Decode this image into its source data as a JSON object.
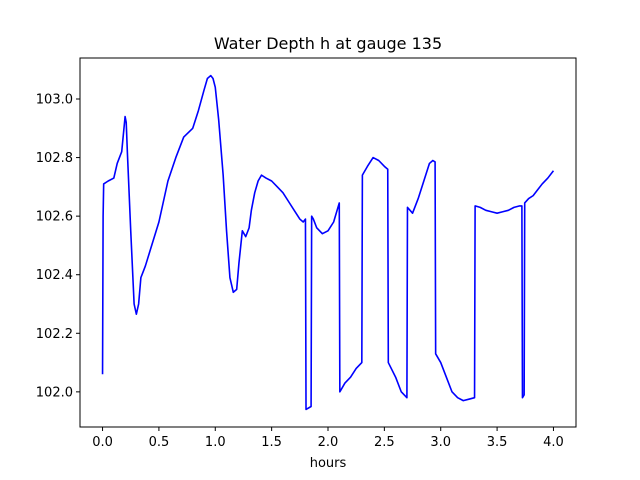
{
  "chart_data": {
    "type": "line",
    "title": "Water Depth h at gauge 135",
    "xlabel": "hours",
    "ylabel": "",
    "xlim": [
      -0.2,
      4.2
    ],
    "ylim": [
      101.88,
      103.14
    ],
    "xticks": [
      0.0,
      0.5,
      1.0,
      1.5,
      2.0,
      2.5,
      3.0,
      3.5,
      4.0
    ],
    "xtick_labels": [
      "0.0",
      "0.5",
      "1.0",
      "1.5",
      "2.0",
      "2.5",
      "3.0",
      "3.5",
      "4.0"
    ],
    "yticks": [
      102.0,
      102.2,
      102.4,
      102.6,
      102.8,
      103.0
    ],
    "ytick_labels": [
      "102.0",
      "102.2",
      "102.4",
      "102.6",
      "102.8",
      "103.0"
    ],
    "grid": false,
    "series": [
      {
        "color": "#0000ff",
        "x": [
          0.0,
          0.005,
          0.01,
          0.05,
          0.1,
          0.13,
          0.17,
          0.2,
          0.21,
          0.22,
          0.25,
          0.28,
          0.3,
          0.32,
          0.34,
          0.36,
          0.38,
          0.42,
          0.5,
          0.58,
          0.65,
          0.72,
          0.8,
          0.85,
          0.9,
          0.93,
          0.96,
          0.98,
          1.0,
          1.03,
          1.07,
          1.1,
          1.13,
          1.16,
          1.19,
          1.21,
          1.24,
          1.27,
          1.3,
          1.32,
          1.35,
          1.38,
          1.41,
          1.45,
          1.5,
          1.55,
          1.6,
          1.65,
          1.7,
          1.75,
          1.78,
          1.8,
          1.805,
          1.85,
          1.855,
          1.87,
          1.9,
          1.95,
          2.0,
          2.05,
          2.1,
          2.105,
          2.15,
          2.2,
          2.25,
          2.3,
          2.305,
          2.35,
          2.4,
          2.45,
          2.5,
          2.53,
          2.535,
          2.6,
          2.65,
          2.7,
          2.705,
          2.75,
          2.8,
          2.85,
          2.9,
          2.93,
          2.95,
          2.955,
          3.0,
          3.05,
          3.1,
          3.15,
          3.2,
          3.25,
          3.3,
          3.305,
          3.35,
          3.4,
          3.45,
          3.5,
          3.55,
          3.6,
          3.65,
          3.7,
          3.72,
          3.725,
          3.74,
          3.745,
          3.78,
          3.82,
          3.86,
          3.9,
          3.95,
          4.0
        ],
        "y": [
          102.06,
          102.6,
          102.71,
          102.72,
          102.73,
          102.78,
          102.82,
          102.94,
          102.92,
          102.82,
          102.55,
          102.3,
          102.265,
          102.3,
          102.39,
          102.41,
          102.43,
          102.48,
          102.58,
          102.72,
          102.8,
          102.87,
          102.9,
          102.96,
          103.03,
          103.07,
          103.08,
          103.07,
          103.04,
          102.93,
          102.74,
          102.55,
          102.39,
          102.34,
          102.35,
          102.44,
          102.55,
          102.53,
          102.56,
          102.62,
          102.68,
          102.72,
          102.74,
          102.73,
          102.72,
          102.7,
          102.68,
          102.65,
          102.62,
          102.59,
          102.58,
          102.59,
          101.94,
          101.95,
          102.6,
          102.59,
          102.56,
          102.54,
          102.55,
          102.58,
          102.645,
          102.0,
          102.03,
          102.05,
          102.08,
          102.1,
          102.74,
          102.77,
          102.8,
          102.79,
          102.77,
          102.76,
          102.1,
          102.05,
          102.0,
          101.98,
          102.63,
          102.61,
          102.66,
          102.72,
          102.78,
          102.79,
          102.785,
          102.13,
          102.1,
          102.05,
          102.0,
          101.98,
          101.97,
          101.975,
          101.98,
          102.635,
          102.63,
          102.62,
          102.615,
          102.61,
          102.615,
          102.62,
          102.63,
          102.635,
          102.635,
          101.98,
          101.99,
          102.645,
          102.66,
          102.67,
          102.69,
          102.71,
          102.73,
          102.755
        ]
      }
    ]
  }
}
